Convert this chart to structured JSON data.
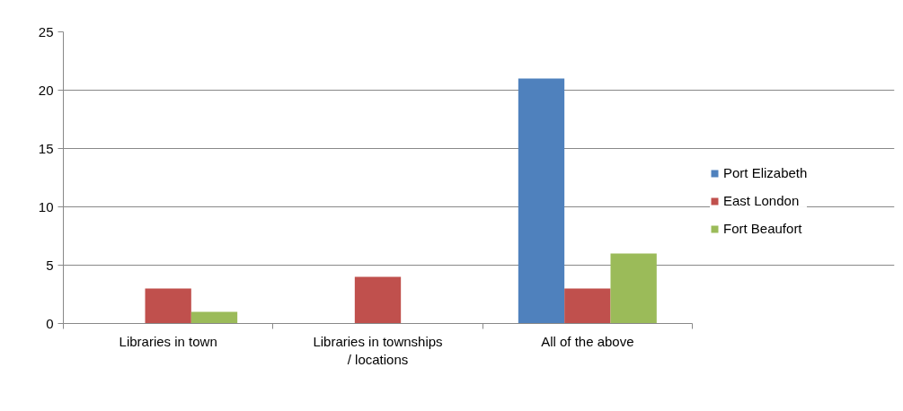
{
  "chart_data": {
    "type": "bar",
    "categories": [
      "Libraries in town",
      "Libraries in townships / locations",
      "All of the above"
    ],
    "series": [
      {
        "name": "Port Elizabeth",
        "color": "#4f81bd",
        "values": [
          0,
          0,
          21
        ]
      },
      {
        "name": "East London",
        "color": "#c0504d",
        "values": [
          3,
          4,
          3
        ]
      },
      {
        "name": "Fort Beaufort",
        "color": "#9bbb59",
        "values": [
          1,
          0,
          6
        ]
      }
    ],
    "ylim": [
      0,
      25
    ],
    "yticks": [
      0,
      5,
      10,
      15,
      20,
      25
    ],
    "grid": "y",
    "legend": "right"
  }
}
